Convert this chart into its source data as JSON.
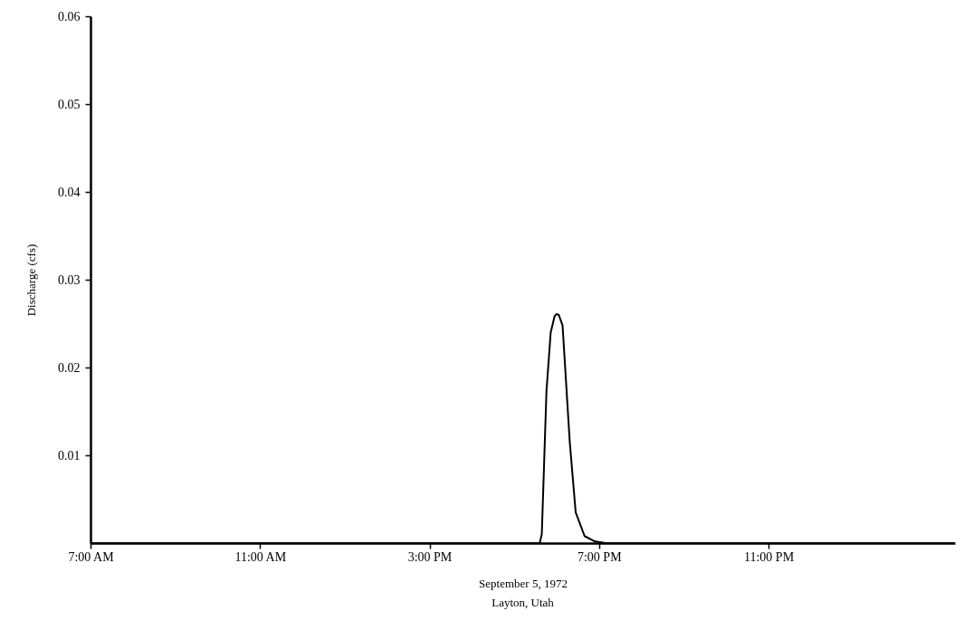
{
  "chart_data": {
    "type": "line",
    "xlabel": "September 5, 1972",
    "ylabel": "Discharge (cfs)",
    "annotations": [
      "Layton, Utah"
    ],
    "x": [
      7,
      17.6,
      17.65,
      17.76,
      17.86,
      17.95,
      18.0,
      18.05,
      18.14,
      18.31,
      18.45,
      18.66,
      18.9,
      19.15,
      27.4
    ],
    "series": [
      {
        "color": "#000000",
        "values": [
          0,
          0,
          0.001,
          0.0173,
          0.024,
          0.0258,
          0.0261,
          0.026,
          0.0248,
          0.0115,
          0.0035,
          0.0008,
          0.0002,
          0,
          0
        ]
      }
    ],
    "xlim": [
      7,
      27.4
    ],
    "ylim": [
      0,
      0.06
    ],
    "xticks": [
      {
        "value": 7,
        "label": "7:00 AM"
      },
      {
        "value": 11,
        "label": "11:00 AM"
      },
      {
        "value": 15,
        "label": "3:00 PM"
      },
      {
        "value": 19,
        "label": "7:00 PM"
      },
      {
        "value": 23,
        "label": "11:00 PM"
      }
    ],
    "yticks": [
      0.01,
      0.02,
      0.03,
      0.04,
      0.05,
      0.06
    ],
    "grid": false
  }
}
